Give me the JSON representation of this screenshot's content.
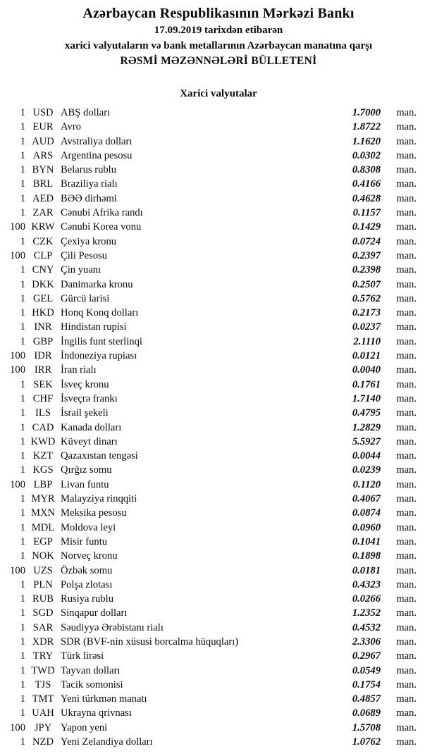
{
  "document": {
    "title": "Azərbaycan Respublikasının Mərkəzi Bankı",
    "date_line": "17.09.2019 tarixdən etibarən",
    "subtitle": "xarici valyutaların və bank metallarının Azərbaycan manatına qarşı",
    "bulletin_line": "RƏSMİ MƏZƏNNƏLƏRİ BÜLLETENİ",
    "section_title": "Xarici valyutalar"
  },
  "table": {
    "rows": [
      {
        "qty": "1",
        "code": "USD",
        "name": "ABŞ dolları",
        "rate": "1.7000",
        "unit": "man."
      },
      {
        "qty": "1",
        "code": "EUR",
        "name": "Avro",
        "rate": "1.8722",
        "unit": "man."
      },
      {
        "qty": "1",
        "code": "AUD",
        "name": "Avstraliya dolları",
        "rate": "1.1620",
        "unit": "man."
      },
      {
        "qty": "1",
        "code": "ARS",
        "name": "Argentina pesosu",
        "rate": "0.0302",
        "unit": "man."
      },
      {
        "qty": "1",
        "code": "BYN",
        "name": "Belarus rublu",
        "rate": "0.8308",
        "unit": "man."
      },
      {
        "qty": "1",
        "code": "BRL",
        "name": "Braziliya rialı",
        "rate": "0.4166",
        "unit": "man."
      },
      {
        "qty": "1",
        "code": "AED",
        "name": "BƏƏ dirhəmi",
        "rate": "0.4628",
        "unit": "man."
      },
      {
        "qty": "1",
        "code": "ZAR",
        "name": "Cənubi Afrika randı",
        "rate": "0.1157",
        "unit": "man."
      },
      {
        "qty": "100",
        "code": "KRW",
        "name": "Cənubi Korea vonu",
        "rate": "0.1429",
        "unit": "man."
      },
      {
        "qty": "1",
        "code": "CZK",
        "name": "Çexiya kronu",
        "rate": "0.0724",
        "unit": "man."
      },
      {
        "qty": "100",
        "code": "CLP",
        "name": "Çili Pesosu",
        "rate": "0.2397",
        "unit": "man."
      },
      {
        "qty": "1",
        "code": "CNY",
        "name": "Çin yuanı",
        "rate": "0.2398",
        "unit": "man."
      },
      {
        "qty": "1",
        "code": "DKK",
        "name": "Danimarka kronu",
        "rate": "0.2507",
        "unit": "man."
      },
      {
        "qty": "1",
        "code": "GEL",
        "name": "Gürcü larisi",
        "rate": "0.5762",
        "unit": "man."
      },
      {
        "qty": "1",
        "code": "HKD",
        "name": "Honq Konq dolları",
        "rate": "0.2173",
        "unit": "man."
      },
      {
        "qty": "1",
        "code": "INR",
        "name": "Hindistan rupisi",
        "rate": "0.0237",
        "unit": "man."
      },
      {
        "qty": "1",
        "code": "GBP",
        "name": "İngilis funt sterlinqi",
        "rate": "2.1110",
        "unit": "man."
      },
      {
        "qty": "100",
        "code": "IDR",
        "name": "İndoneziya rupiası",
        "rate": "0.0121",
        "unit": "man."
      },
      {
        "qty": "100",
        "code": "IRR",
        "name": "İran rialı",
        "rate": "0.0040",
        "unit": "man."
      },
      {
        "qty": "1",
        "code": "SEK",
        "name": "İsveç kronu",
        "rate": "0.1761",
        "unit": "man."
      },
      {
        "qty": "1",
        "code": "CHF",
        "name": "İsveçrə frankı",
        "rate": "1.7140",
        "unit": "man."
      },
      {
        "qty": "1",
        "code": "ILS",
        "name": "İsrail şekeli",
        "rate": "0.4795",
        "unit": "man."
      },
      {
        "qty": "1",
        "code": "CAD",
        "name": "Kanada dolları",
        "rate": "1.2829",
        "unit": "man."
      },
      {
        "qty": "1",
        "code": "KWD",
        "name": "Küveyt dinarı",
        "rate": "5.5927",
        "unit": "man."
      },
      {
        "qty": "1",
        "code": "KZT",
        "name": "Qazaxıstan tengəsi",
        "rate": "0.0044",
        "unit": "man."
      },
      {
        "qty": "1",
        "code": "KGS",
        "name": "Qırğız somu",
        "rate": "0.0239",
        "unit": "man."
      },
      {
        "qty": "100",
        "code": "LBP",
        "name": "Livan funtu",
        "rate": "0.1120",
        "unit": "man."
      },
      {
        "qty": "1",
        "code": "MYR",
        "name": "Malayziya rinqqiti",
        "rate": "0.4067",
        "unit": "man."
      },
      {
        "qty": "1",
        "code": "MXN",
        "name": "Meksika pesosu",
        "rate": "0.0874",
        "unit": "man."
      },
      {
        "qty": "1",
        "code": "MDL",
        "name": "Moldova leyi",
        "rate": "0.0960",
        "unit": "man."
      },
      {
        "qty": "1",
        "code": "EGP",
        "name": "Misir funtu",
        "rate": "0.1041",
        "unit": "man."
      },
      {
        "qty": "1",
        "code": "NOK",
        "name": "Norveç kronu",
        "rate": "0.1898",
        "unit": "man."
      },
      {
        "qty": "100",
        "code": "UZS",
        "name": "Özbək somu",
        "rate": "0.0181",
        "unit": "man."
      },
      {
        "qty": "1",
        "code": "PLN",
        "name": "Polşa zlotası",
        "rate": "0.4323",
        "unit": "man."
      },
      {
        "qty": "1",
        "code": "RUB",
        "name": "Rusiya rublu",
        "rate": "0.0266",
        "unit": "man."
      },
      {
        "qty": "1",
        "code": "SGD",
        "name": "Sinqapur dolları",
        "rate": "1.2352",
        "unit": "man."
      },
      {
        "qty": "1",
        "code": "SAR",
        "name": "Səudiyyə Ərəbistanı rialı",
        "rate": "0.4532",
        "unit": "man."
      },
      {
        "qty": "1",
        "code": "XDR",
        "name": "SDR (BVF-nin xüsusi borcalma hüquqları)",
        "rate": "2.3306",
        "unit": "man."
      },
      {
        "qty": "1",
        "code": "TRY",
        "name": "Türk lirəsi",
        "rate": "0.2967",
        "unit": "man."
      },
      {
        "qty": "1",
        "code": "TWD",
        "name": "Tayvan dolları",
        "rate": "0.0549",
        "unit": "man."
      },
      {
        "qty": "1",
        "code": "TJS",
        "name": "Tacik somonisi",
        "rate": "0.1754",
        "unit": "man."
      },
      {
        "qty": "1",
        "code": "TMT",
        "name": "Yeni türkmən manatı",
        "rate": "0.4857",
        "unit": "man."
      },
      {
        "qty": "1",
        "code": "UAH",
        "name": "Ukrayna qrivnası",
        "rate": "0.0689",
        "unit": "man."
      },
      {
        "qty": "100",
        "code": "JPY",
        "name": "Yapon yeni",
        "rate": "1.5708",
        "unit": "man."
      },
      {
        "qty": "1",
        "code": "NZD",
        "name": "Yeni Zelandiya dolları",
        "rate": "1.0762",
        "unit": "man."
      }
    ]
  }
}
